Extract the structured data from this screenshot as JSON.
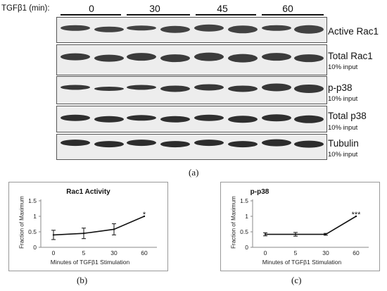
{
  "header": {
    "treatment_label": "TGFβ1 (min):",
    "timepoints": [
      "0",
      "30",
      "45",
      "60"
    ]
  },
  "panels": [
    {
      "name": "Active Rac1",
      "sub": "",
      "band_color": "#2a2a2a"
    },
    {
      "name": "Total Rac1",
      "sub": "10% input",
      "band_color": "#222222"
    },
    {
      "name": "p-p38",
      "sub": "10% input",
      "band_color": "#1e1e1e"
    },
    {
      "name": "Total p38",
      "sub": "10% input",
      "band_color": "#151515"
    },
    {
      "name": "Tubulin",
      "sub": "10% input",
      "band_color": "#111111"
    }
  ],
  "sub_labels": {
    "a": "(a)",
    "b": "(b)",
    "c": "(c)"
  },
  "chart_data": [
    {
      "type": "line",
      "title": "Rac1 Activity",
      "xlabel": "Minutes of TGFβ1 Stimulation",
      "ylabel": "Fraction of Maximum",
      "x": [
        "0",
        "5",
        "30",
        "60"
      ],
      "series": [
        {
          "values": [
            0.4,
            0.45,
            0.58,
            1.0
          ],
          "errors": [
            0.15,
            0.17,
            0.18,
            0.0
          ]
        }
      ],
      "ylim": [
        0,
        1.5
      ],
      "yticks": [
        "0",
        "0.5",
        "1",
        "1.5"
      ],
      "annotations": [
        {
          "x_index": 3,
          "text": "*"
        }
      ],
      "line_color": "#111111"
    },
    {
      "type": "line",
      "title": "p-p38",
      "xlabel": "Minutes of TGFβ1 Stimulation",
      "ylabel": "Fraction of Maximum",
      "x": [
        "0",
        "5",
        "30",
        "60"
      ],
      "series": [
        {
          "values": [
            0.42,
            0.42,
            0.42,
            1.0
          ],
          "errors": [
            0.05,
            0.06,
            0.03,
            0.0
          ]
        }
      ],
      "ylim": [
        0,
        1.5
      ],
      "yticks": [
        "0",
        "0.5",
        "1",
        "1.5"
      ],
      "annotations": [
        {
          "x_index": 3,
          "text": "***"
        }
      ],
      "line_color": "#111111"
    }
  ]
}
